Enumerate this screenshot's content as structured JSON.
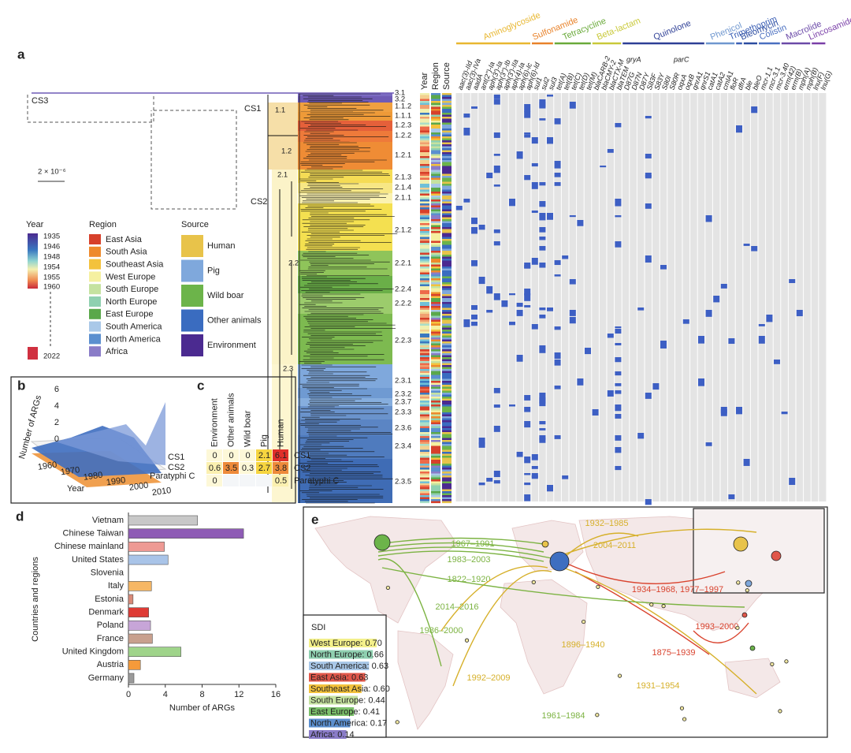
{
  "panel_labels": {
    "a": "a",
    "b": "b",
    "c": "c",
    "d": "d",
    "e": "e"
  },
  "tree": {
    "scale": "2 × 10⁻⁶",
    "lineages": [
      "CS3",
      "CS1",
      "CS2"
    ],
    "nodes": [
      "1.1",
      "1.2",
      "2.1",
      "2.2",
      "2.3"
    ],
    "clades": [
      "3.1",
      "3.2",
      "1.1.2",
      "1.1.1",
      "1.2.3",
      "1.2.2",
      "1.2.1",
      "2.1.3",
      "2.1.4",
      "2.1.1",
      "2.1.2",
      "2.2.1",
      "2.2.4",
      "2.2.2",
      "2.2.3",
      "2.3.1",
      "2.3.2",
      "2.3.7",
      "2.3.3",
      "2.3.6",
      "2.3.4",
      "2.3.5"
    ]
  },
  "strips": [
    "Year",
    "Region",
    "Source"
  ],
  "heatmap": {
    "classes": [
      {
        "name": "Aminoglycoside",
        "color": "#e8b730"
      },
      {
        "name": "Sulfonamide",
        "color": "#e8822a"
      },
      {
        "name": "Tetracycline",
        "color": "#6aaa3a"
      },
      {
        "name": "Beta-lactam",
        "color": "#c9c93a"
      },
      {
        "name": "Quinolone",
        "color": "#2e3f96"
      },
      {
        "name": "Phenicol",
        "color": "#6f97cf"
      },
      {
        "name": "Trimethoprim",
        "color": "#3b5fb5"
      },
      {
        "name": "Bleomycin",
        "color": "#2c4ca0"
      },
      {
        "name": "Colistin",
        "color": "#4a6fc0"
      },
      {
        "name": "Macrolide",
        "color": "#6b4aa8"
      },
      {
        "name": "Lincosamide",
        "color": "#7a3fa8"
      }
    ],
    "genes": [
      "aac(3)-IId",
      "aac(3)-IVa",
      "aadA",
      "ant(2'')-Ia",
      "aph(3')-Ia",
      "aph(3'')-Ib",
      "aph(3')-IIa",
      "aph(4)-Ia",
      "aph(6)-Ic",
      "aph(6)-Id",
      "sul1",
      "sul2",
      "sul3",
      "tet(A)",
      "tet(B)",
      "tet(C)",
      "tet(D)",
      "tet(M)",
      "blaCARB-2",
      "blaCMY-2",
      "blaCTX-M",
      "blaTEM",
      "D87G",
      "D87N",
      "D87Y",
      "S83F",
      "S83Y",
      "S80I",
      "S80R",
      "oqxA",
      "oqxB",
      "qnrA1",
      "qnrS1",
      "catA1",
      "catA2",
      "cmlA1",
      "floR",
      "dfrA",
      "ble",
      "bleO",
      "mcr-1.1",
      "mcr-3.1",
      "mcr-3.40",
      "erm(42)",
      "erm(B)",
      "mph(A)",
      "mph(B)",
      "lnu(F)",
      "lnu(G)"
    ],
    "mutation_groups": [
      "gryA",
      "parC"
    ]
  },
  "legends": {
    "year": {
      "title": "Year",
      "ticks": [
        1935,
        1946,
        1948,
        1954,
        1955,
        1960,
        2022
      ]
    },
    "region": {
      "title": "Region",
      "items": [
        {
          "name": "East Asia",
          "color": "#d7402b"
        },
        {
          "name": "South Asia",
          "color": "#ee8a2c"
        },
        {
          "name": "Southeast Asia",
          "color": "#f3c23c"
        },
        {
          "name": "West Europe",
          "color": "#f5f0a0"
        },
        {
          "name": "South Europe",
          "color": "#c5e2a0"
        },
        {
          "name": "North Europe",
          "color": "#8fd0b0"
        },
        {
          "name": "East Europe",
          "color": "#5aa84a"
        },
        {
          "name": "South America",
          "color": "#a9c8e8"
        },
        {
          "name": "North America",
          "color": "#5b8fcf"
        },
        {
          "name": "Africa",
          "color": "#8a7cc8"
        }
      ]
    },
    "source": {
      "title": "Source",
      "items": [
        {
          "name": "Human",
          "color": "#e8c34a"
        },
        {
          "name": "Pig",
          "color": "#7fa8dc"
        },
        {
          "name": "Wild boar",
          "color": "#6cb44a"
        },
        {
          "name": "Other animals",
          "color": "#3a6cc0"
        },
        {
          "name": "Environment",
          "color": "#4b2a90"
        }
      ]
    }
  },
  "panel_b": {
    "x_label": "Year",
    "y_label": "Number of ARGs",
    "xticks": [
      1960,
      1970,
      1980,
      1990,
      2000,
      2010
    ],
    "yticks": [
      0,
      2,
      4,
      6
    ],
    "series": [
      "CS1",
      "CS2",
      "Paratyphi C"
    ]
  },
  "panel_c": {
    "columns": [
      "Environment",
      "Other animals",
      "Wild boar",
      "Pig",
      "Human"
    ],
    "rows": [
      {
        "name": "CS1",
        "values": [
          0,
          0,
          0,
          2.1,
          6.1
        ]
      },
      {
        "name": "CS2",
        "values": [
          0.6,
          3.5,
          0.3,
          2.7,
          3.8
        ]
      },
      {
        "name": "Paratyphi C",
        "values": [
          0,
          null,
          null,
          null,
          0.5
        ]
      }
    ]
  },
  "chart_data": {
    "type": "bar",
    "orientation": "horizontal",
    "x_label": "Number of ARGs",
    "y_label": "Countries and regions",
    "categories": [
      "Vietnam",
      "Chinese Taiwan",
      "Chinese mainland",
      "United States",
      "Slovenia",
      "Italy",
      "Estonia",
      "Denmark",
      "Poland",
      "France",
      "United Kingdom",
      "Austria",
      "Germany"
    ],
    "values": [
      7.5,
      12.5,
      3.9,
      4.3,
      0,
      2.5,
      0.5,
      2.2,
      2.4,
      2.6,
      5.7,
      1.3,
      0.6
    ],
    "colors": [
      "#c8c8c8",
      "#8e5bb5",
      "#ee9a94",
      "#a9c4e8",
      "#ffffff",
      "#f6b765",
      "#d98a78",
      "#de3a34",
      "#c7a5d8",
      "#c8a08e",
      "#9fd48a",
      "#f59a3a",
      "#9a9a9a"
    ],
    "xlim": [
      0,
      16
    ],
    "xticks": [
      0,
      4,
      8,
      12,
      16
    ]
  },
  "map": {
    "routes": [
      {
        "label": "1967–1991",
        "color": "#7cb342"
      },
      {
        "label": "1983–2003",
        "color": "#7cb342"
      },
      {
        "label": "1822–1920",
        "color": "#7cb342"
      },
      {
        "label": "2014–2016",
        "color": "#7cb342"
      },
      {
        "label": "1986–2000",
        "color": "#7cb342"
      },
      {
        "label": "1896–1940",
        "color": "#d6b02a"
      },
      {
        "label": "1992–2009",
        "color": "#d6b02a"
      },
      {
        "label": "1932–1985",
        "color": "#d6b02a"
      },
      {
        "label": "2004–2011",
        "color": "#d6b02a"
      },
      {
        "label": "1934–1968, 1977–1997",
        "color": "#d9432e"
      },
      {
        "label": "1993–2000",
        "color": "#d9432e"
      },
      {
        "label": "1875–1939",
        "color": "#d9432e"
      },
      {
        "label": "1931–1954",
        "color": "#d6b02a"
      },
      {
        "label": "1961–1984",
        "color": "#7cb342"
      }
    ],
    "sdi": {
      "title": "SDI",
      "items": [
        {
          "label": "West Europe: 0.70",
          "color": "#f3f08a"
        },
        {
          "label": "North Europe: 0.66",
          "color": "#8fd0b0"
        },
        {
          "label": "South America: 0.63",
          "color": "#a9c8e8"
        },
        {
          "label": "East Asia: 0.63",
          "color": "#e0574a"
        },
        {
          "label": "Southeast Asia: 0.60",
          "color": "#f3c23c"
        },
        {
          "label": "South Europe: 0.44",
          "color": "#c5e2a0"
        },
        {
          "label": "East Europe: 0.41",
          "color": "#7bc06a"
        },
        {
          "label": "North America: 0.17",
          "color": "#5b8fcf"
        },
        {
          "label": "Africa: 0.14",
          "color": "#8a7cc8"
        }
      ]
    }
  }
}
